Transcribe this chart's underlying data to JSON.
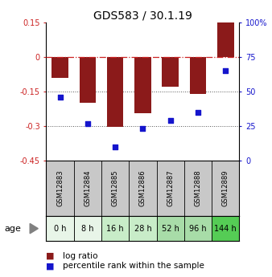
{
  "title": "GDS583 / 30.1.19",
  "samples": [
    "GSM12883",
    "GSM12884",
    "GSM12885",
    "GSM12886",
    "GSM12887",
    "GSM12888",
    "GSM12889"
  ],
  "ages": [
    "0 h",
    "8 h",
    "16 h",
    "28 h",
    "52 h",
    "96 h",
    "144 h"
  ],
  "log_ratio": [
    -0.09,
    -0.2,
    -0.305,
    -0.245,
    -0.13,
    -0.16,
    0.15
  ],
  "percentile_rank": [
    46,
    27,
    10,
    23,
    29,
    35,
    65
  ],
  "bar_color": "#8B1A1A",
  "dot_color": "#1515CC",
  "left_ylim": [
    -0.45,
    0.15
  ],
  "left_yticks": [
    0.15,
    0.0,
    -0.15,
    -0.3,
    -0.45
  ],
  "left_yticklabels": [
    "0.15",
    "0",
    "-0.15",
    "-0.3",
    "-0.45"
  ],
  "right_ylim": [
    0,
    100
  ],
  "right_yticks": [
    0,
    25,
    50,
    75,
    100
  ],
  "right_yticklabels": [
    "0",
    "25",
    "50",
    "75",
    "100%"
  ],
  "hline_zero_color": "#CC2222",
  "hline_zero_style": "-.",
  "hline_grid_color": "#555555",
  "hline_grid_style": ":",
  "hline_grid_values": [
    -0.15,
    -0.3
  ],
  "age_bg_colors": [
    "#e8f5e8",
    "#e8f5e8",
    "#c8ecc8",
    "#c8ecc8",
    "#a8dca8",
    "#a8dca8",
    "#55cc55"
  ],
  "gsm_bg_color": "#c8c8c8",
  "legend_log_ratio": "log ratio",
  "legend_percentile": "percentile rank within the sample",
  "background_color": "#ffffff"
}
